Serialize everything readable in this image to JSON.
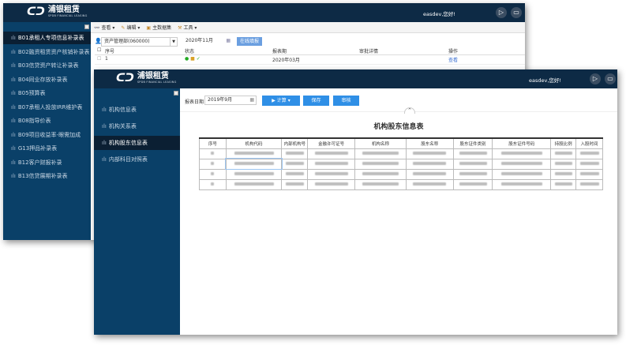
{
  "brand": {
    "name": "浦银租赁",
    "sub": "SPDB FINANCIAL LEASING"
  },
  "greeting": "easdev,您好!",
  "back": {
    "toolbar": [
      {
        "label": "查看",
        "icon": "binoculars-icon"
      },
      {
        "label": "编辑",
        "icon": "pencil-icon"
      },
      {
        "label": "主数据集",
        "icon": "database-icon"
      },
      {
        "label": "工具",
        "icon": "tools-icon"
      }
    ],
    "org_select": "资产管理部(060000)",
    "period": "2020年11月",
    "fill_button": "在线填报",
    "columns": [
      "序号",
      "状态",
      "报表期",
      "审批详情",
      "操作"
    ],
    "row": {
      "index": "1",
      "period": "2020年03月",
      "action": "查看"
    },
    "sidebar": [
      "B01承租人专项信息补录表",
      "B02融资租赁资产核销补录表",
      "B03信贷资产转让补录表",
      "B04同业存放补录表",
      "B05预算表",
      "B07承租人投放IRR维护表",
      "B08指导价表",
      "B09项目收益率-眼需加成",
      "G13押品补录表",
      "B12客户财报补录",
      "B13信贷展期补录表"
    ],
    "selected": 0
  },
  "front": {
    "sidebar": [
      "机构信息表",
      "机构关系表",
      "机构股东信息表",
      "内部科目对照表"
    ],
    "selected": 2,
    "date_label": "报表日期",
    "date_value": "2019年9月",
    "calc_button": "计算",
    "save_button": "保存",
    "review_button": "审核",
    "table_title": "机构股东信息表",
    "columns": [
      "序号",
      "机构代码",
      "内部机构号",
      "金融许可证号",
      "机构名称",
      "股东名称",
      "股东证件类别",
      "股东证件号码",
      "持股比例",
      "入股时间"
    ],
    "row_count": 4
  },
  "colors": {
    "header": "#0d2a45",
    "sidebar": "#0a4068",
    "selected": "#0b1f33",
    "button": "#2f8fe6"
  }
}
